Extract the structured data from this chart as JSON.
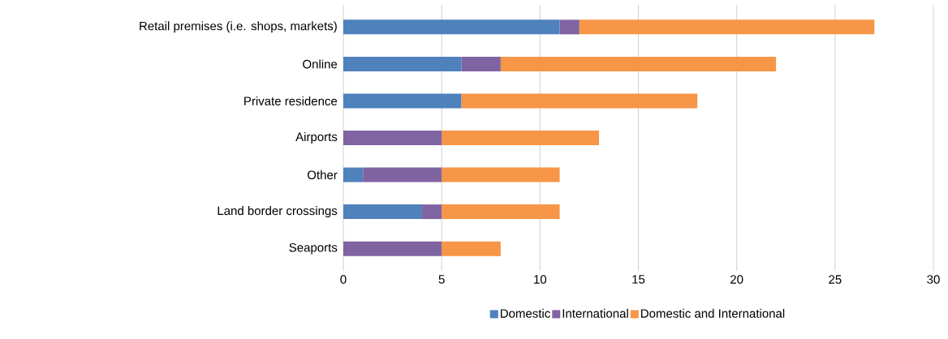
{
  "chart_data": {
    "type": "bar",
    "orientation": "horizontal",
    "stacked": true,
    "categories": [
      "Retail premises (i.e. shops, markets)",
      "Online",
      "Private residence",
      "Airports",
      "Other",
      "Land border crossings",
      "Seaports"
    ],
    "series": [
      {
        "name": "Domestic",
        "color": "#4f81bd",
        "values": [
          11,
          6,
          6,
          0,
          1,
          4,
          0
        ]
      },
      {
        "name": "International",
        "color": "#8064a2",
        "values": [
          1,
          2,
          0,
          5,
          4,
          1,
          5
        ]
      },
      {
        "name": "Domestic and International",
        "color": "#f79646",
        "values": [
          15,
          14,
          12,
          8,
          6,
          6,
          3
        ]
      }
    ],
    "xlim": [
      0,
      30
    ],
    "xticks": [
      0,
      5,
      10,
      15,
      20,
      25,
      30
    ],
    "grid": "x",
    "legend": "bottom"
  }
}
